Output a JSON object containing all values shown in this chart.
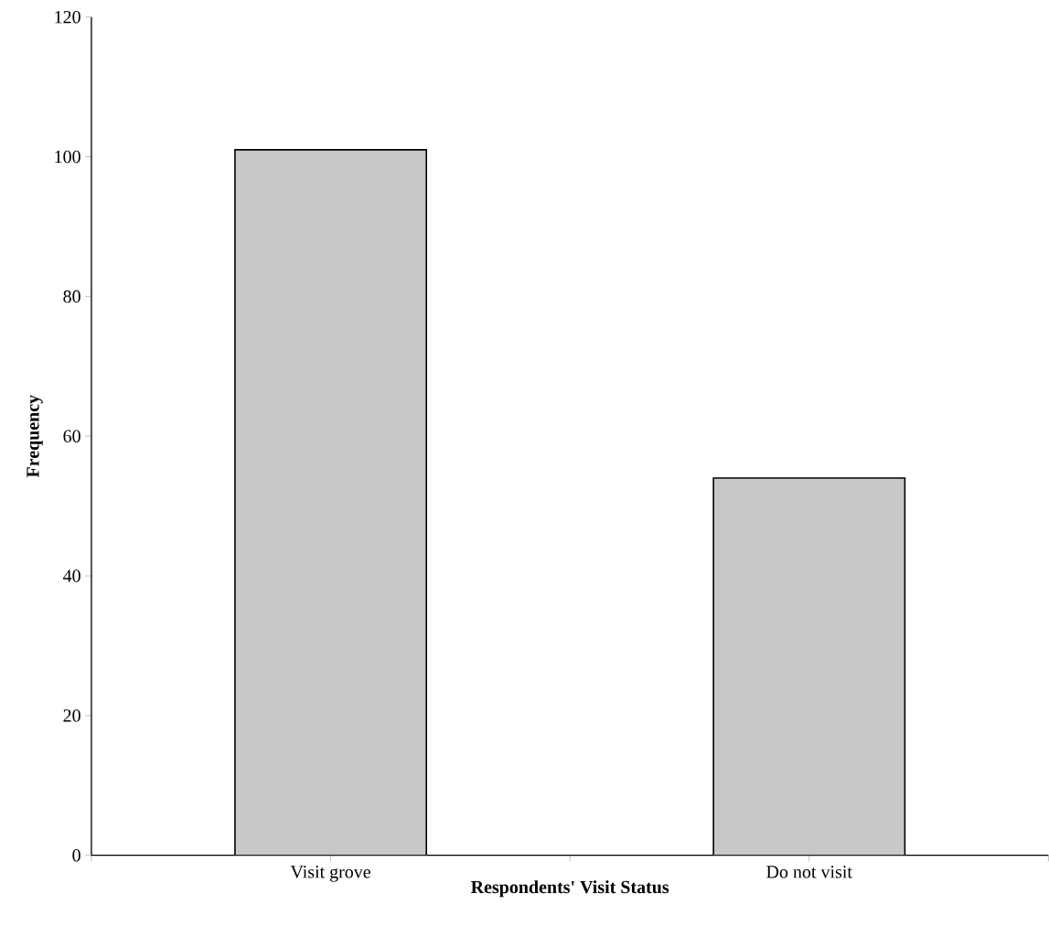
{
  "chart_data": {
    "type": "bar",
    "xlabel": "Respondents' Visit Status",
    "ylabel": "Frequency",
    "categories": [
      "Visit grove",
      "Do not visit"
    ],
    "values": [
      101,
      54
    ],
    "color": "#c8c8c8",
    "ylim": [
      0,
      120
    ],
    "yticks": [
      0,
      20,
      40,
      60,
      80,
      100,
      120
    ],
    "grid": false
  }
}
